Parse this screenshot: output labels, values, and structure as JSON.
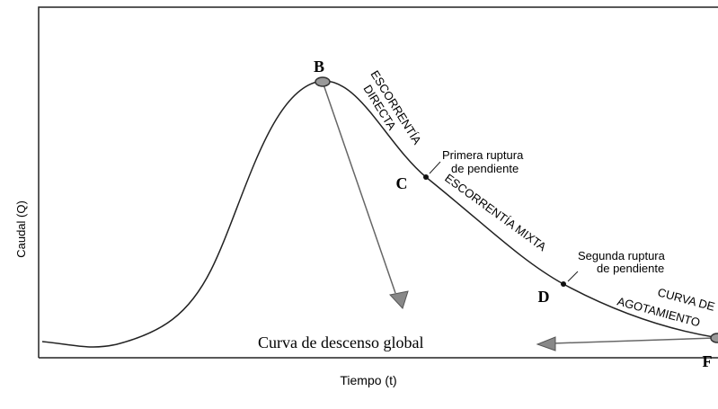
{
  "diagram": {
    "y_axis_label": "Caudal (Q)",
    "x_axis_label": "Tiempo (t)",
    "points": {
      "B": "B",
      "C": "C",
      "D": "D",
      "F": "F"
    },
    "direct_runoff": [
      "ESCORRENTÍA",
      "DIRECTA"
    ],
    "first_break": [
      "Primera ruptura",
      "de pendiente"
    ],
    "mixed_runoff": "ESCORRENTÍA MIXTA",
    "second_break": [
      "Segunda ruptura",
      "de pendiente"
    ],
    "depletion_curve": [
      "CURVA DE",
      "AGOTAMIENTO"
    ],
    "global_recession": "Curva de descenso global"
  }
}
